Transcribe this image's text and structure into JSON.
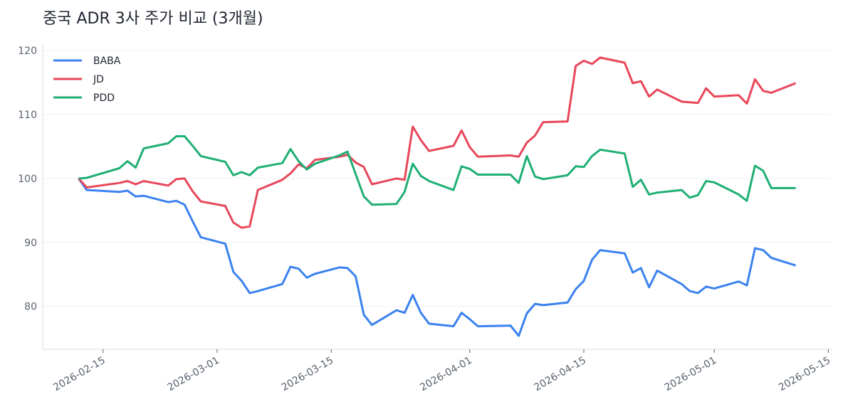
{
  "chart_data": {
    "type": "line",
    "title": "중국 ADR 3사 주가 비교 (3개월)",
    "x": [
      "2026-02-12",
      "2026-02-13",
      "2026-02-17",
      "2026-02-18",
      "2026-02-19",
      "2026-02-20",
      "2026-02-23",
      "2026-02-24",
      "2026-02-25",
      "2026-02-26",
      "2026-02-27",
      "2026-03-02",
      "2026-03-03",
      "2026-03-04",
      "2026-03-05",
      "2026-03-06",
      "2026-03-09",
      "2026-03-10",
      "2026-03-11",
      "2026-03-12",
      "2026-03-13",
      "2026-03-16",
      "2026-03-17",
      "2026-03-18",
      "2026-03-19",
      "2026-03-20",
      "2026-03-23",
      "2026-03-24",
      "2026-03-25",
      "2026-03-26",
      "2026-03-27",
      "2026-03-30",
      "2026-03-31",
      "2026-04-01",
      "2026-04-02",
      "2026-04-06",
      "2026-04-07",
      "2026-04-08",
      "2026-04-09",
      "2026-04-10",
      "2026-04-13",
      "2026-04-14",
      "2026-04-15",
      "2026-04-16",
      "2026-04-17",
      "2026-04-20",
      "2026-04-21",
      "2026-04-22",
      "2026-04-23",
      "2026-04-24",
      "2026-04-27",
      "2026-04-28",
      "2026-04-29",
      "2026-04-30",
      "2026-05-01",
      "2026-05-04",
      "2026-05-05",
      "2026-05-06",
      "2026-05-07",
      "2026-05-08",
      "2026-05-11"
    ],
    "series": [
      {
        "name": "BABA",
        "color": "#3b82f0",
        "values": [
          100,
          98.2,
          97.9,
          98.1,
          97.2,
          97.3,
          96.3,
          96.5,
          95.9,
          93.3,
          90.8,
          89.8,
          85.4,
          84.0,
          82.1,
          82.4,
          83.5,
          86.2,
          85.9,
          84.5,
          85.1,
          86.1,
          86.0,
          84.7,
          78.7,
          77.1,
          79.4,
          79.0,
          81.8,
          79.0,
          77.3,
          76.9,
          79.0,
          78.0,
          76.9,
          77.0,
          75.4,
          78.9,
          80.4,
          80.2,
          80.6,
          82.7,
          84.0,
          87.3,
          88.8,
          88.3,
          85.3,
          86.0,
          83.0,
          85.6,
          83.5,
          82.4,
          82.1,
          83.1,
          82.8,
          83.9,
          83.3,
          89.1,
          88.8,
          87.6,
          86.4
        ]
      },
      {
        "name": "JD",
        "color": "#e8475a",
        "values": [
          100,
          98.6,
          99.3,
          99.6,
          99.1,
          99.6,
          98.9,
          99.9,
          100.0,
          98.0,
          96.4,
          95.7,
          93.1,
          92.3,
          92.5,
          98.2,
          99.8,
          100.8,
          102.2,
          101.6,
          102.9,
          103.4,
          103.7,
          102.5,
          101.8,
          99.1,
          100.0,
          99.8,
          108.1,
          106.0,
          104.3,
          105.1,
          107.5,
          104.9,
          103.4,
          103.6,
          103.4,
          105.6,
          106.7,
          108.8,
          108.9,
          117.6,
          118.4,
          117.9,
          118.9,
          118.1,
          114.9,
          115.2,
          112.8,
          113.9,
          112.0,
          111.9,
          111.8,
          114.1,
          112.8,
          113.0,
          111.7,
          115.5,
          113.7,
          113.4,
          114.9
        ]
      },
      {
        "name": "PDD",
        "color": "#1faf74",
        "values": [
          100,
          100.1,
          101.6,
          102.7,
          101.7,
          104.7,
          105.5,
          106.6,
          106.6,
          105.1,
          103.5,
          102.6,
          100.5,
          101.0,
          100.5,
          101.7,
          102.4,
          104.6,
          102.7,
          101.4,
          102.3,
          103.6,
          104.2,
          100.7,
          97.2,
          95.9,
          96.0,
          97.9,
          102.3,
          100.4,
          99.6,
          98.2,
          101.9,
          101.5,
          100.6,
          100.6,
          99.3,
          103.5,
          100.3,
          99.9,
          100.5,
          101.9,
          101.8,
          103.5,
          104.5,
          103.9,
          98.7,
          99.8,
          97.5,
          97.8,
          98.2,
          97.0,
          97.4,
          99.6,
          99.4,
          97.5,
          96.5,
          102.0,
          101.2,
          98.5,
          98.5
        ]
      }
    ],
    "xlim": [
      "2026-02-07T14:24",
      "2026-05-15T09:36"
    ],
    "xticks": [
      "2026-02-15",
      "2026-03-01",
      "2026-03-15",
      "2026-04-01",
      "2026-04-15",
      "2026-05-01",
      "2026-05-15"
    ],
    "ylim": [
      73.3,
      121
    ],
    "yticks": [
      80,
      90,
      100,
      110,
      120
    ],
    "grid": true,
    "legend": "upper-left"
  }
}
